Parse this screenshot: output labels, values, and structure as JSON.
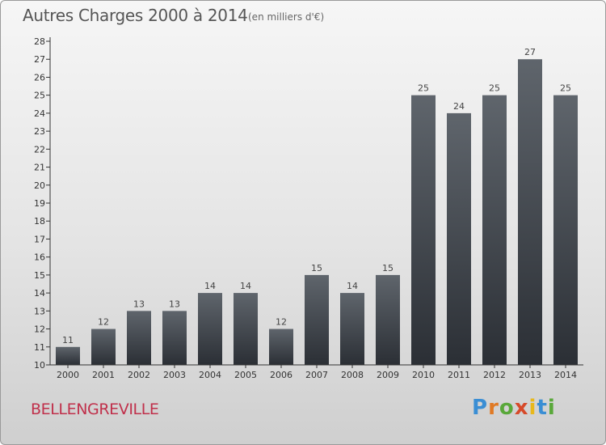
{
  "title": "Autres Charges 2000 à 2014",
  "unit": "(en milliers d'€)",
  "city": "BELLENGREVILLE",
  "logo": {
    "letters": [
      "P",
      "r",
      "o",
      "x",
      "i",
      "t",
      "i"
    ]
  },
  "colors": {
    "bar_top": "#5f656c",
    "bar_bottom": "#2b2f35",
    "city": "#c0304b"
  },
  "chart_data": {
    "type": "bar",
    "categories": [
      "2000",
      "2001",
      "2002",
      "2003",
      "2004",
      "2005",
      "2006",
      "2007",
      "2008",
      "2009",
      "2010",
      "2011",
      "2012",
      "2013",
      "2014"
    ],
    "values": [
      11,
      12,
      13,
      13,
      14,
      14,
      12,
      15,
      14,
      15,
      25,
      24,
      25,
      27,
      25
    ],
    "title": "Autres Charges 2000 à 2014",
    "subtitle": "(en milliers d'€)",
    "xlabel": "",
    "ylabel": "",
    "ylim": [
      10,
      28
    ],
    "yticks": [
      10,
      11,
      12,
      13,
      14,
      15,
      16,
      17,
      18,
      19,
      20,
      21,
      22,
      23,
      24,
      25,
      26,
      27,
      28
    ],
    "grid": false,
    "legend": "none"
  }
}
